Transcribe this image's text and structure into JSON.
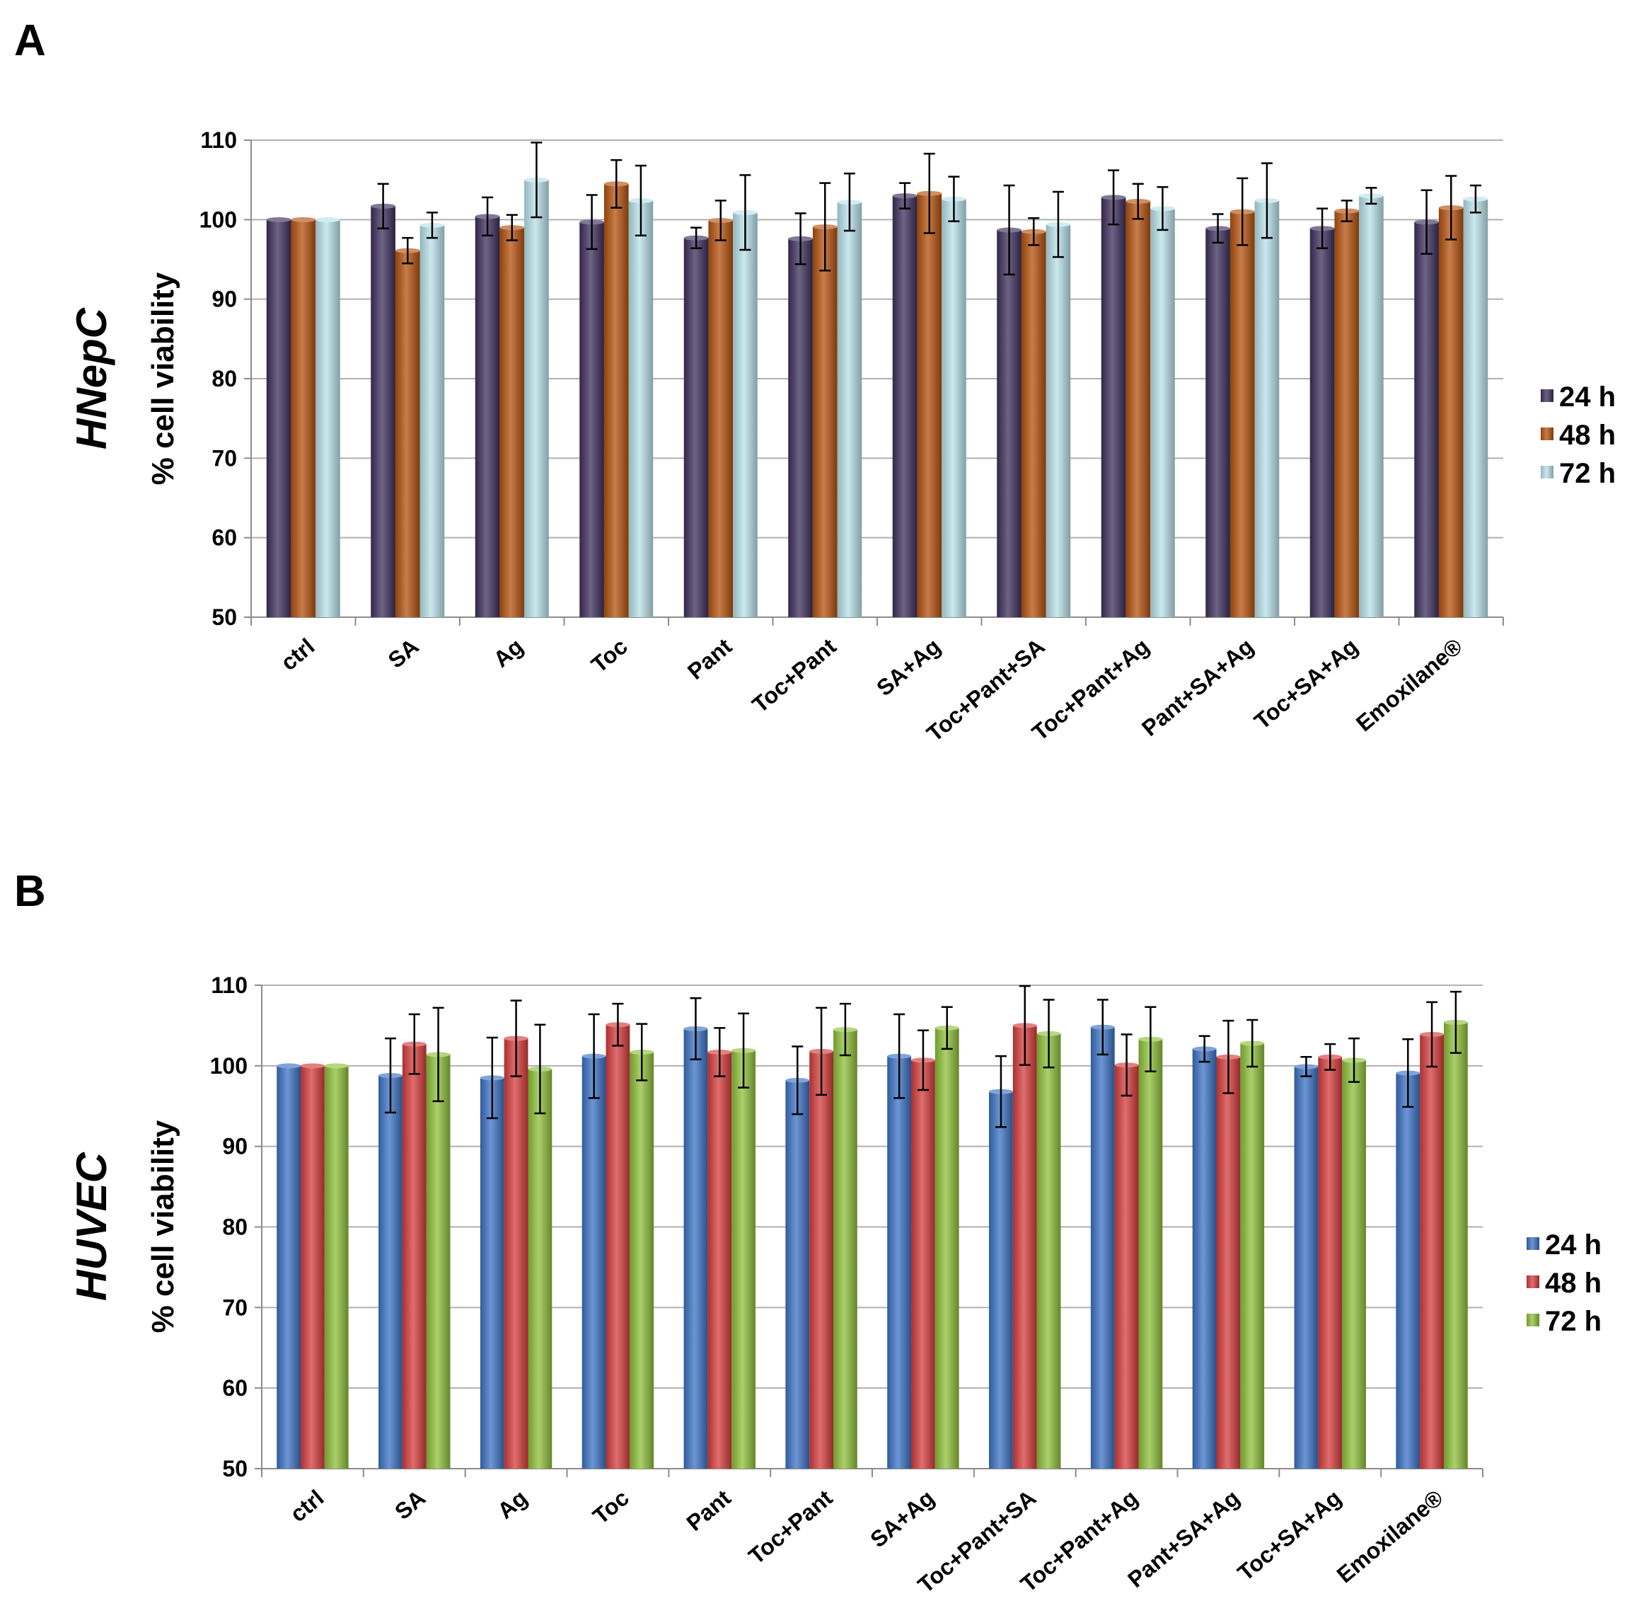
{
  "chart_data": [
    {
      "type": "bar",
      "panel": "A",
      "cell_type": "HNepC",
      "ylabel": "% cell viability",
      "ylim": [
        50,
        110
      ],
      "yticks": [
        50,
        60,
        70,
        80,
        90,
        100,
        110
      ],
      "grid": true,
      "legend_position": "right",
      "categories": [
        "ctrl",
        "SA",
        "Ag",
        "Toc",
        "Pant",
        "Toc+Pant",
        "SA+Ag",
        "Toc+Pant+SA",
        "Toc+Pant+Ag",
        "Pant+SA+Ag",
        "Toc+SA+Ag",
        "Emoxilane®"
      ],
      "series": [
        {
          "name": "24 h",
          "color": "#3d2f5c",
          "values": [
            100,
            101.7,
            100.4,
            99.7,
            97.7,
            97.6,
            103,
            98.7,
            102.8,
            98.9,
            98.9,
            99.7
          ],
          "errors": [
            0,
            2.8,
            2.4,
            3.4,
            1.3,
            3.2,
            1.6,
            5.6,
            3.4,
            1.8,
            2.5,
            4.0
          ]
        },
        {
          "name": "48 h",
          "color": "#b5520e",
          "values": [
            100,
            96.1,
            99,
            104.5,
            99.9,
            99.1,
            103.3,
            98.5,
            102.3,
            101,
            101.1,
            101.5
          ],
          "errors": [
            0,
            1.6,
            1.6,
            3.0,
            2.5,
            5.5,
            5.0,
            1.7,
            2.2,
            4.2,
            1.3,
            4.0
          ]
        },
        {
          "name": "72 h",
          "color": "#b8e2ea",
          "values": [
            100,
            99.3,
            105,
            102.4,
            100.9,
            102.2,
            102.6,
            99.4,
            101.4,
            102.4,
            103,
            102.6
          ],
          "errors": [
            0,
            1.6,
            4.7,
            4.4,
            4.7,
            3.6,
            2.8,
            4.1,
            2.7,
            4.7,
            1.0,
            1.7
          ]
        }
      ]
    },
    {
      "type": "bar",
      "panel": "B",
      "cell_type": "HUVEC",
      "ylabel": "% cell viability",
      "ylim": [
        50,
        110
      ],
      "yticks": [
        50,
        60,
        70,
        80,
        90,
        100,
        110
      ],
      "grid": true,
      "legend_position": "right",
      "categories": [
        "ctrl",
        "SA",
        "Ag",
        "Toc",
        "Pant",
        "Toc+Pant",
        "SA+Ag",
        "Toc+Pant+SA",
        "Toc+Pant+Ag",
        "Pant+SA+Ag",
        "Toc+SA+Ag",
        "Emoxilane®"
      ],
      "series": [
        {
          "name": "24 h",
          "color": "#3b72c4",
          "values": [
            100,
            98.8,
            98.5,
            101.2,
            104.6,
            98.2,
            101.2,
            96.8,
            104.8,
            102.1,
            99.9,
            99.1
          ],
          "errors": [
            0,
            4.6,
            5.0,
            5.2,
            3.8,
            4.2,
            5.2,
            4.4,
            3.4,
            1.6,
            1.2,
            4.2
          ]
        },
        {
          "name": "48 h",
          "color": "#d63c3c",
          "values": [
            100,
            102.7,
            103.4,
            105.1,
            101.7,
            101.8,
            100.7,
            105.0,
            100.1,
            101.1,
            101.1,
            103.9
          ],
          "errors": [
            0,
            3.7,
            4.7,
            2.6,
            3.0,
            5.4,
            3.7,
            4.9,
            3.8,
            4.5,
            1.6,
            4.0
          ]
        },
        {
          "name": "72 h",
          "color": "#8fc03a",
          "values": [
            100,
            101.4,
            99.6,
            101.7,
            101.9,
            104.5,
            104.7,
            104.0,
            103.3,
            102.8,
            100.7,
            105.4
          ],
          "errors": [
            0,
            5.8,
            5.5,
            3.5,
            4.6,
            3.2,
            2.6,
            4.2,
            4.0,
            2.9,
            2.7,
            3.8
          ]
        }
      ]
    }
  ]
}
